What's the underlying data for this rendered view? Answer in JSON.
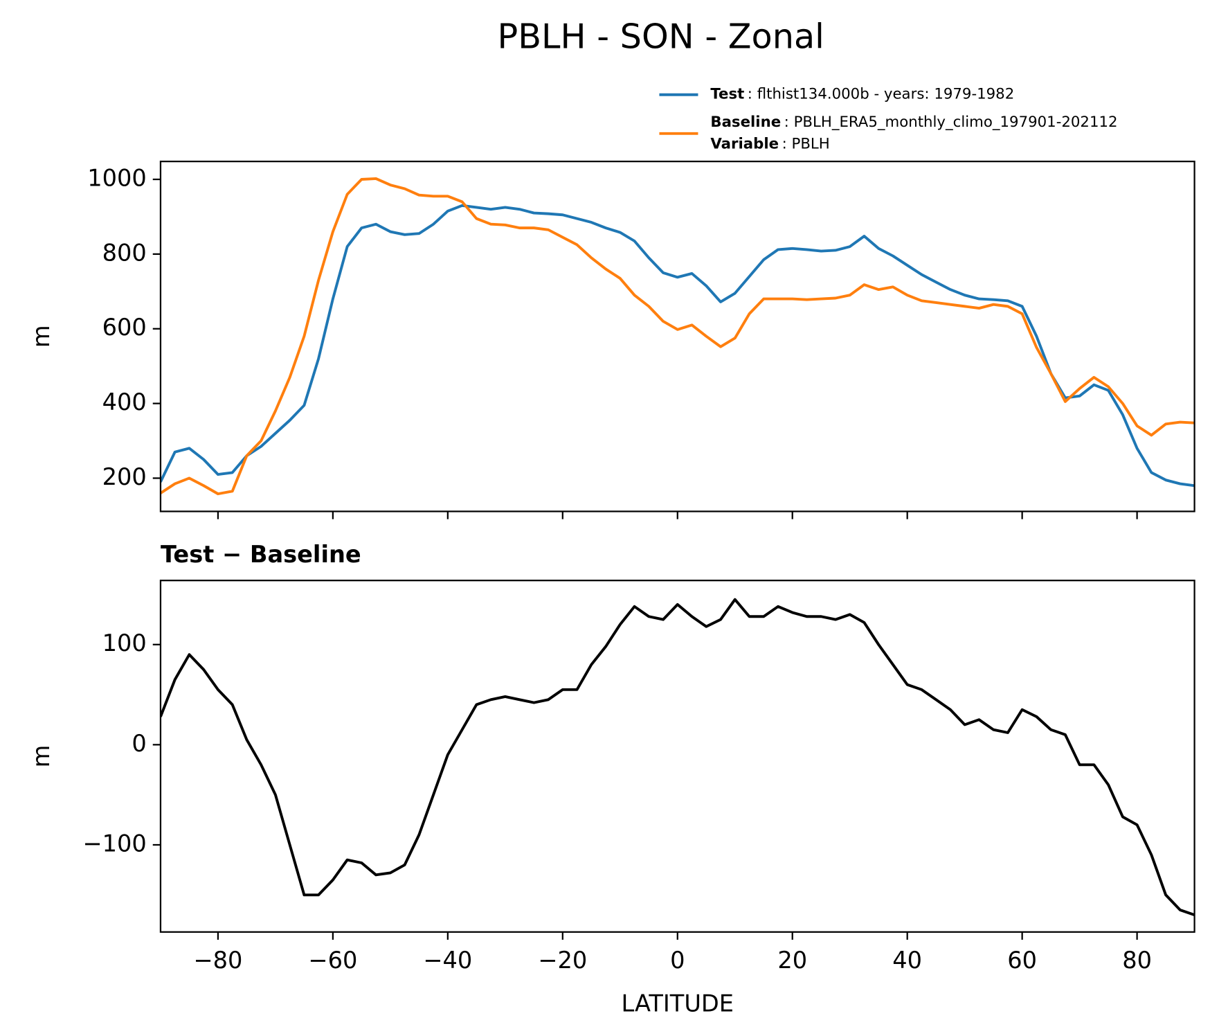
{
  "title": "PBLH - SON - Zonal",
  "chart_data": [
    {
      "type": "line",
      "ylabel": "m",
      "x": [
        -90,
        -87.5,
        -85,
        -82.5,
        -80,
        -77.5,
        -75,
        -72.5,
        -70,
        -67.5,
        -65,
        -62.5,
        -60,
        -57.5,
        -55,
        -52.5,
        -50,
        -47.5,
        -45,
        -42.5,
        -40,
        -37.5,
        -35,
        -32.5,
        -30,
        -27.5,
        -25,
        -22.5,
        -20,
        -17.5,
        -15,
        -12.5,
        -10,
        -7.5,
        -5,
        -2.5,
        0,
        2.5,
        5,
        7.5,
        10,
        12.5,
        15,
        17.5,
        20,
        22.5,
        25,
        27.5,
        30,
        32.5,
        35,
        37.5,
        40,
        42.5,
        45,
        47.5,
        50,
        52.5,
        55,
        57.5,
        60,
        62.5,
        65,
        67.5,
        70,
        72.5,
        75,
        77.5,
        80,
        82.5,
        85,
        87.5,
        90
      ],
      "series": [
        {
          "name": "Test",
          "description": ": flthist134.000b - years: 1979-1982",
          "color": "#1f77b4",
          "values": [
            190,
            270,
            280,
            250,
            210,
            215,
            260,
            285,
            320,
            355,
            395,
            520,
            680,
            820,
            870,
            880,
            860,
            852,
            855,
            880,
            915,
            930,
            925,
            920,
            925,
            920,
            910,
            908,
            905,
            895,
            885,
            870,
            858,
            835,
            790,
            750,
            738,
            748,
            715,
            672,
            695,
            740,
            785,
            812,
            815,
            812,
            808,
            810,
            820,
            848,
            815,
            795,
            770,
            745,
            725,
            705,
            690,
            680,
            678,
            675,
            660,
            580,
            480,
            415,
            420,
            450,
            435,
            370,
            280,
            215,
            195,
            185,
            180
          ]
        },
        {
          "name": "Baseline",
          "description": ": PBLH_ERA5_monthly_climo_197901-202112",
          "color": "#ff7f0e",
          "values": [
            160,
            185,
            200,
            180,
            158,
            165,
            260,
            300,
            380,
            470,
            580,
            730,
            860,
            960,
            1000,
            1002,
            985,
            975,
            958,
            955,
            955,
            940,
            895,
            880,
            878,
            870,
            870,
            865,
            845,
            825,
            790,
            760,
            735,
            690,
            660,
            620,
            598,
            610,
            580,
            552,
            575,
            640,
            680,
            680,
            680,
            678,
            680,
            682,
            690,
            718,
            705,
            712,
            690,
            675,
            670,
            665,
            660,
            655,
            665,
            660,
            640,
            550,
            480,
            405,
            440,
            470,
            445,
            400,
            340,
            315,
            345,
            350,
            348
          ]
        }
      ],
      "legend_note": {
        "name": "Variable",
        "text": ": PBLH"
      },
      "xlim": [
        -90,
        90
      ],
      "xticks": [
        -80,
        -60,
        -40,
        -20,
        0,
        20,
        40,
        60,
        80
      ],
      "ylim": [
        111,
        1048
      ],
      "yticks": [
        200,
        400,
        600,
        800,
        1000
      ]
    },
    {
      "type": "line",
      "title": "Test − Baseline",
      "xlabel": "LATITUDE",
      "ylabel": "m",
      "x": [
        -90,
        -87.5,
        -85,
        -82.5,
        -80,
        -77.5,
        -75,
        -72.5,
        -70,
        -67.5,
        -65,
        -62.5,
        -60,
        -57.5,
        -55,
        -52.5,
        -50,
        -47.5,
        -45,
        -42.5,
        -40,
        -37.5,
        -35,
        -32.5,
        -30,
        -27.5,
        -25,
        -22.5,
        -20,
        -17.5,
        -15,
        -12.5,
        -10,
        -7.5,
        -5,
        -2.5,
        0,
        2.5,
        5,
        7.5,
        10,
        12.5,
        15,
        17.5,
        20,
        22.5,
        25,
        27.5,
        30,
        32.5,
        35,
        37.5,
        40,
        42.5,
        45,
        47.5,
        50,
        52.5,
        55,
        57.5,
        60,
        62.5,
        65,
        67.5,
        70,
        72.5,
        75,
        77.5,
        80,
        82.5,
        85,
        87.5,
        90
      ],
      "series": [
        {
          "color": "#000000",
          "values": [
            28,
            65,
            90,
            75,
            55,
            40,
            5,
            -20,
            -50,
            -100,
            -150,
            -150,
            -135,
            -115,
            -118,
            -130,
            -128,
            -120,
            -90,
            -50,
            -10,
            15,
            40,
            45,
            48,
            45,
            42,
            45,
            55,
            55,
            80,
            98,
            120,
            138,
            128,
            125,
            140,
            128,
            118,
            125,
            145,
            128,
            128,
            138,
            132,
            128,
            128,
            125,
            130,
            122,
            100,
            80,
            60,
            55,
            45,
            35,
            20,
            25,
            15,
            12,
            35,
            28,
            15,
            10,
            -20,
            -20,
            -40,
            -72,
            -80,
            -110,
            -150,
            -165,
            -170
          ]
        }
      ],
      "xlim": [
        -90,
        90
      ],
      "xticks": [
        {
          "value": -80,
          "label": "−80"
        },
        {
          "value": -60,
          "label": "−60"
        },
        {
          "value": -40,
          "label": "−40"
        },
        {
          "value": -20,
          "label": "−20"
        },
        0,
        20,
        40,
        60,
        80
      ],
      "ylim": [
        -187,
        164
      ],
      "yticks": [
        {
          "value": -100,
          "label": "−100"
        },
        0,
        100
      ]
    }
  ]
}
